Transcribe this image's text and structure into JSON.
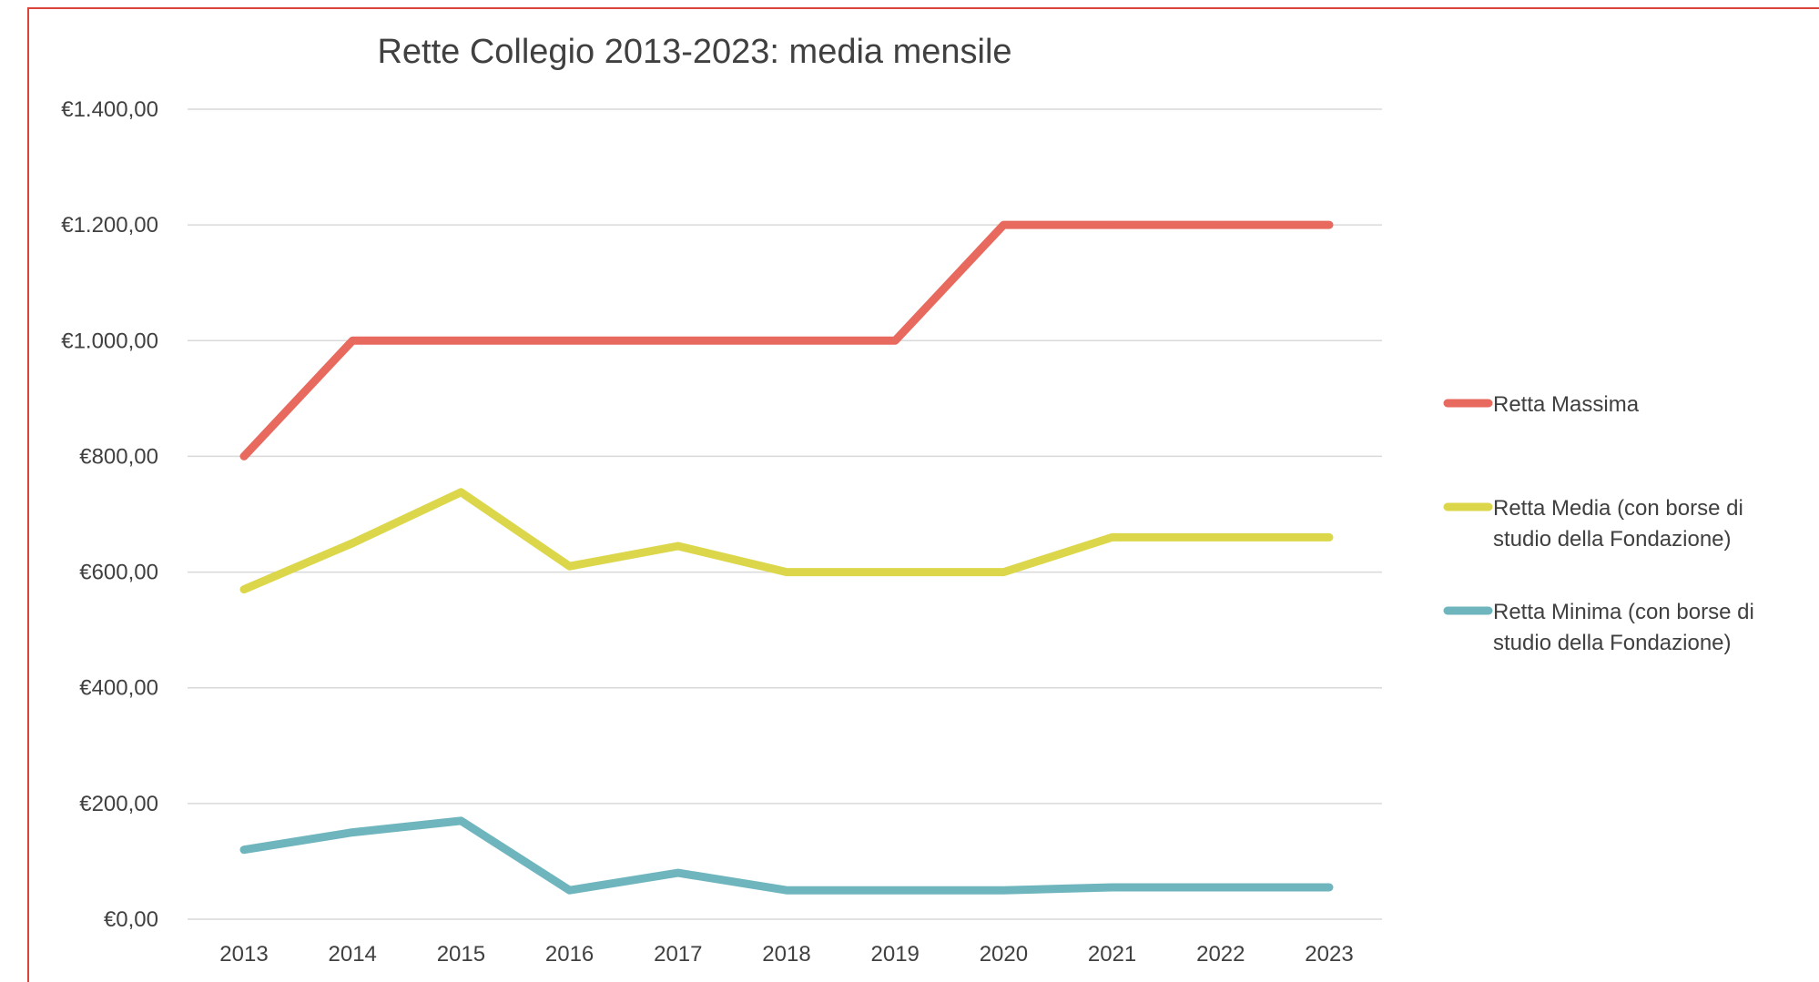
{
  "chart_data": {
    "type": "line",
    "title": "Rette Collegio 2013-2023: media mensile",
    "xlabel": "",
    "ylabel": "",
    "categories": [
      "2013",
      "2014",
      "2015",
      "2016",
      "2017",
      "2018",
      "2019",
      "2020",
      "2021",
      "2022",
      "2023"
    ],
    "y_ticks": [
      "€0,00",
      "€200,00",
      "€400,00",
      "€600,00",
      "€800,00",
      "€1.000,00",
      "€1.200,00",
      "€1.400,00"
    ],
    "ylim": [
      0,
      1400
    ],
    "grid": true,
    "legend_position": "right",
    "series": [
      {
        "name": "Retta Massima",
        "legend_lines": [
          "Retta Massima"
        ],
        "color": "#e8695e",
        "values": [
          800,
          1000,
          1000,
          1000,
          1000,
          1000,
          1000,
          1200,
          1200,
          1200,
          1200
        ]
      },
      {
        "name": "Retta Media (con borse di studio della Fondazione)",
        "legend_lines": [
          "Retta Media (con borse di",
          "studio della Fondazione)"
        ],
        "color": "#dcd74a",
        "values": [
          570,
          650,
          738,
          610,
          645,
          600,
          600,
          600,
          660,
          660,
          660
        ]
      },
      {
        "name": "Retta Minima (con borse di studio della Fondazione)",
        "legend_lines": [
          "Retta Minima (con borse di",
          "studio della Fondazione)"
        ],
        "color": "#6fb5be",
        "values": [
          120,
          150,
          170,
          50,
          80,
          50,
          50,
          50,
          55,
          55,
          55
        ]
      }
    ]
  }
}
